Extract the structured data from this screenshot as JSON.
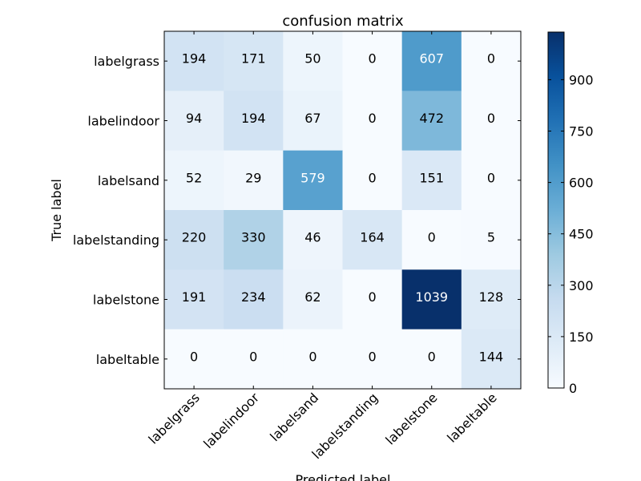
{
  "chart_data": {
    "type": "heatmap",
    "title": "confusion matrix",
    "xlabel": "Predicted label",
    "ylabel": "True label",
    "x_categories": [
      "labelgrass",
      "labelindoor",
      "labelsand",
      "labelstanding",
      "labelstone",
      "labeltable"
    ],
    "y_categories": [
      "labelgrass",
      "labelindoor",
      "labelsand",
      "labelstanding",
      "labelstone",
      "labeltable"
    ],
    "matrix": [
      [
        194,
        171,
        50,
        0,
        607,
        0
      ],
      [
        94,
        194,
        67,
        0,
        472,
        0
      ],
      [
        52,
        29,
        579,
        0,
        151,
        0
      ],
      [
        220,
        330,
        46,
        164,
        0,
        5
      ],
      [
        191,
        234,
        62,
        0,
        1039,
        128
      ],
      [
        0,
        0,
        0,
        0,
        0,
        144
      ]
    ],
    "colormap": "Blues",
    "colorbar": {
      "min": 0,
      "max": 1039,
      "ticks": [
        0,
        150,
        300,
        450,
        600,
        750,
        900
      ]
    },
    "grid": false
  }
}
